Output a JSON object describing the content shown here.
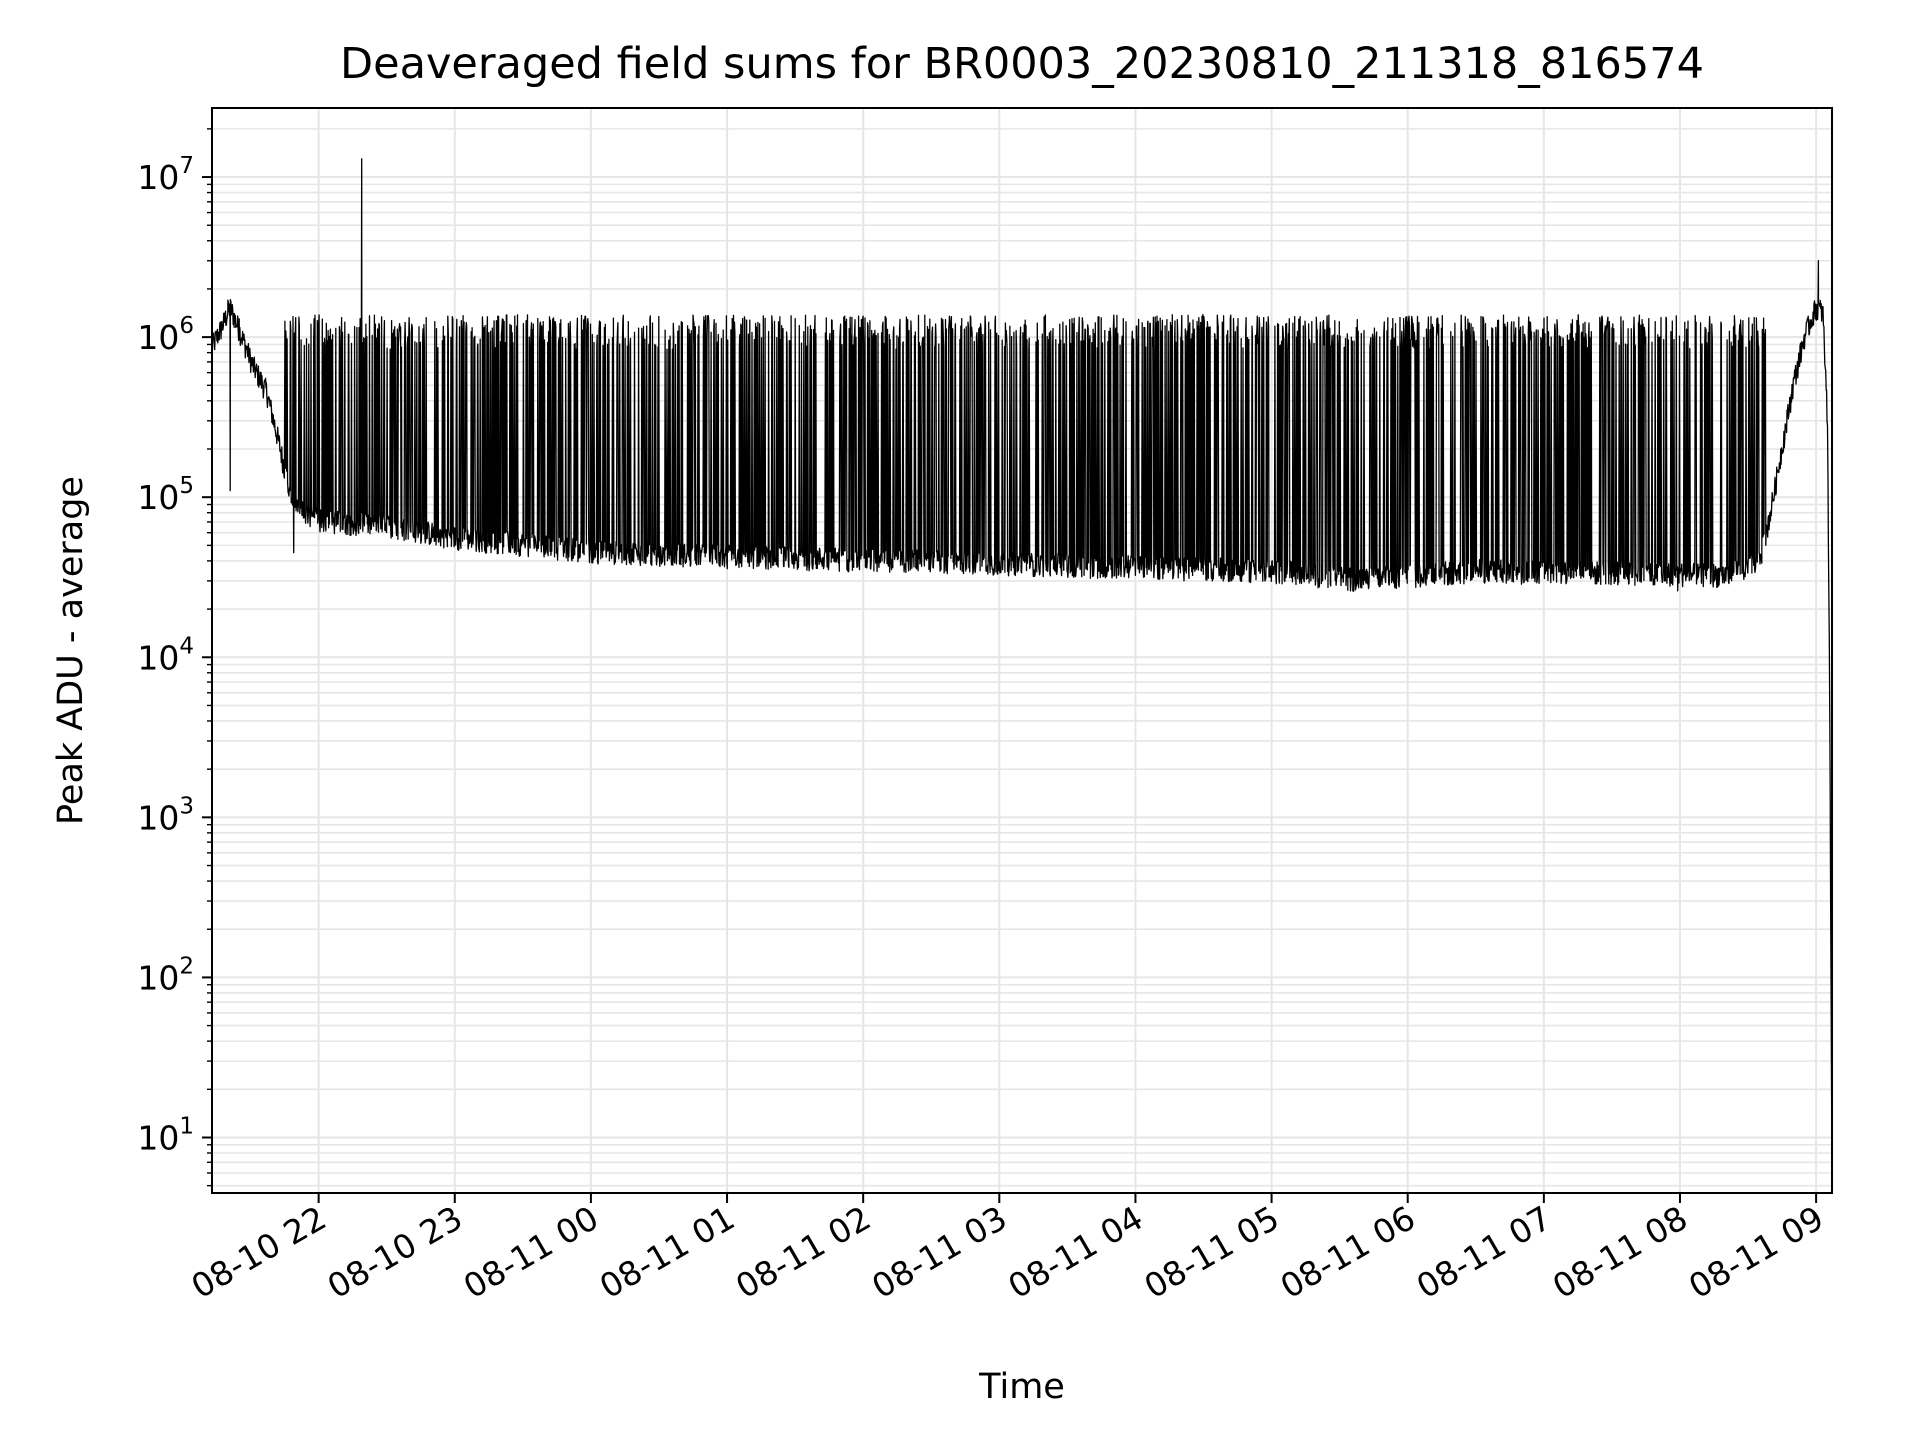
{
  "chart_data": {
    "type": "line",
    "title": "Deaveraged field sums for BR0003_20230810_211318_816574",
    "xlabel": "Time",
    "ylabel": "Peak ADU - average",
    "yscale": "log",
    "grid": true,
    "line_color": "#000000",
    "grid_color": "#e6e6e6",
    "xlim": [
      "2023-08-10 21:13",
      "2023-08-11 09:07"
    ],
    "ylim": [
      4.5,
      27000000
    ],
    "x_ticks": [
      {
        "value": "2023-08-10 22:00",
        "label": "08-10 22"
      },
      {
        "value": "2023-08-10 23:00",
        "label": "08-10 23"
      },
      {
        "value": "2023-08-11 00:00",
        "label": "08-11 00"
      },
      {
        "value": "2023-08-11 01:00",
        "label": "08-11 01"
      },
      {
        "value": "2023-08-11 02:00",
        "label": "08-11 02"
      },
      {
        "value": "2023-08-11 03:00",
        "label": "08-11 03"
      },
      {
        "value": "2023-08-11 04:00",
        "label": "08-11 04"
      },
      {
        "value": "2023-08-11 05:00",
        "label": "08-11 05"
      },
      {
        "value": "2023-08-11 06:00",
        "label": "08-11 06"
      },
      {
        "value": "2023-08-11 07:00",
        "label": "08-11 07"
      },
      {
        "value": "2023-08-11 08:00",
        "label": "08-11 08"
      },
      {
        "value": "2023-08-11 09:00",
        "label": "08-11 09"
      }
    ],
    "y_ticks": [
      {
        "value": 10,
        "base": "10",
        "exp": "1"
      },
      {
        "value": 100,
        "base": "10",
        "exp": "2"
      },
      {
        "value": 1000,
        "base": "10",
        "exp": "3"
      },
      {
        "value": 10000,
        "base": "10",
        "exp": "4"
      },
      {
        "value": 100000,
        "base": "10",
        "exp": "5"
      },
      {
        "value": 1000000,
        "base": "10",
        "exp": "6"
      },
      {
        "value": 10000000,
        "base": "10",
        "exp": "7"
      }
    ],
    "series": [
      {
        "baseline": [
          [
            "2023-08-10 21:13",
            850000
          ],
          [
            "2023-08-10 21:17",
            1100000
          ],
          [
            "2023-08-10 21:21",
            1500000
          ],
          [
            "2023-08-10 21:26",
            1000000
          ],
          [
            "2023-08-10 21:31",
            650000
          ],
          [
            "2023-08-10 21:37",
            450000
          ],
          [
            "2023-08-10 21:43",
            200000
          ],
          [
            "2023-08-10 21:48",
            90000
          ],
          [
            "2023-08-10 22:00",
            70000
          ],
          [
            "2023-08-10 22:30",
            65000
          ],
          [
            "2023-08-10 23:00",
            55000
          ],
          [
            "2023-08-10 23:30",
            50000
          ],
          [
            "2023-08-11 00:00",
            45000
          ],
          [
            "2023-08-11 01:00",
            42000
          ],
          [
            "2023-08-11 02:00",
            40000
          ],
          [
            "2023-08-11 03:00",
            38000
          ],
          [
            "2023-08-11 04:00",
            36000
          ],
          [
            "2023-08-11 05:00",
            34000
          ],
          [
            "2023-08-11 05:40",
            30000
          ],
          [
            "2023-08-11 06:30",
            34000
          ],
          [
            "2023-08-11 07:30",
            33000
          ],
          [
            "2023-08-11 08:20",
            32000
          ],
          [
            "2023-08-11 08:35",
            38000
          ],
          [
            "2023-08-11 08:40",
            80000
          ],
          [
            "2023-08-11 08:45",
            200000
          ],
          [
            "2023-08-11 08:50",
            500000
          ],
          [
            "2023-08-11 08:55",
            1000000
          ],
          [
            "2023-08-11 09:00",
            1500000
          ],
          [
            "2023-08-11 09:03",
            1400000
          ],
          [
            "2023-08-11 09:05",
            300000
          ],
          [
            "2023-08-11 09:06",
            5000
          ],
          [
            "2023-08-11 09:07",
            5
          ]
        ],
        "spike_peak": 1200000,
        "spike_trough": 30000,
        "extra_peaks": [
          [
            "2023-08-10 22:19",
            13000000
          ],
          [
            "2023-08-11 09:01",
            3000000
          ],
          [
            "2023-08-10 21:20",
            1700000
          ],
          [
            "2023-08-10 21:25",
            1300000
          ]
        ],
        "extra_troughs": [
          [
            "2023-08-10 21:21",
            110000
          ],
          [
            "2023-08-10 21:49",
            45000
          ],
          [
            "2023-08-11 07:59",
            26000
          ]
        ]
      }
    ]
  }
}
